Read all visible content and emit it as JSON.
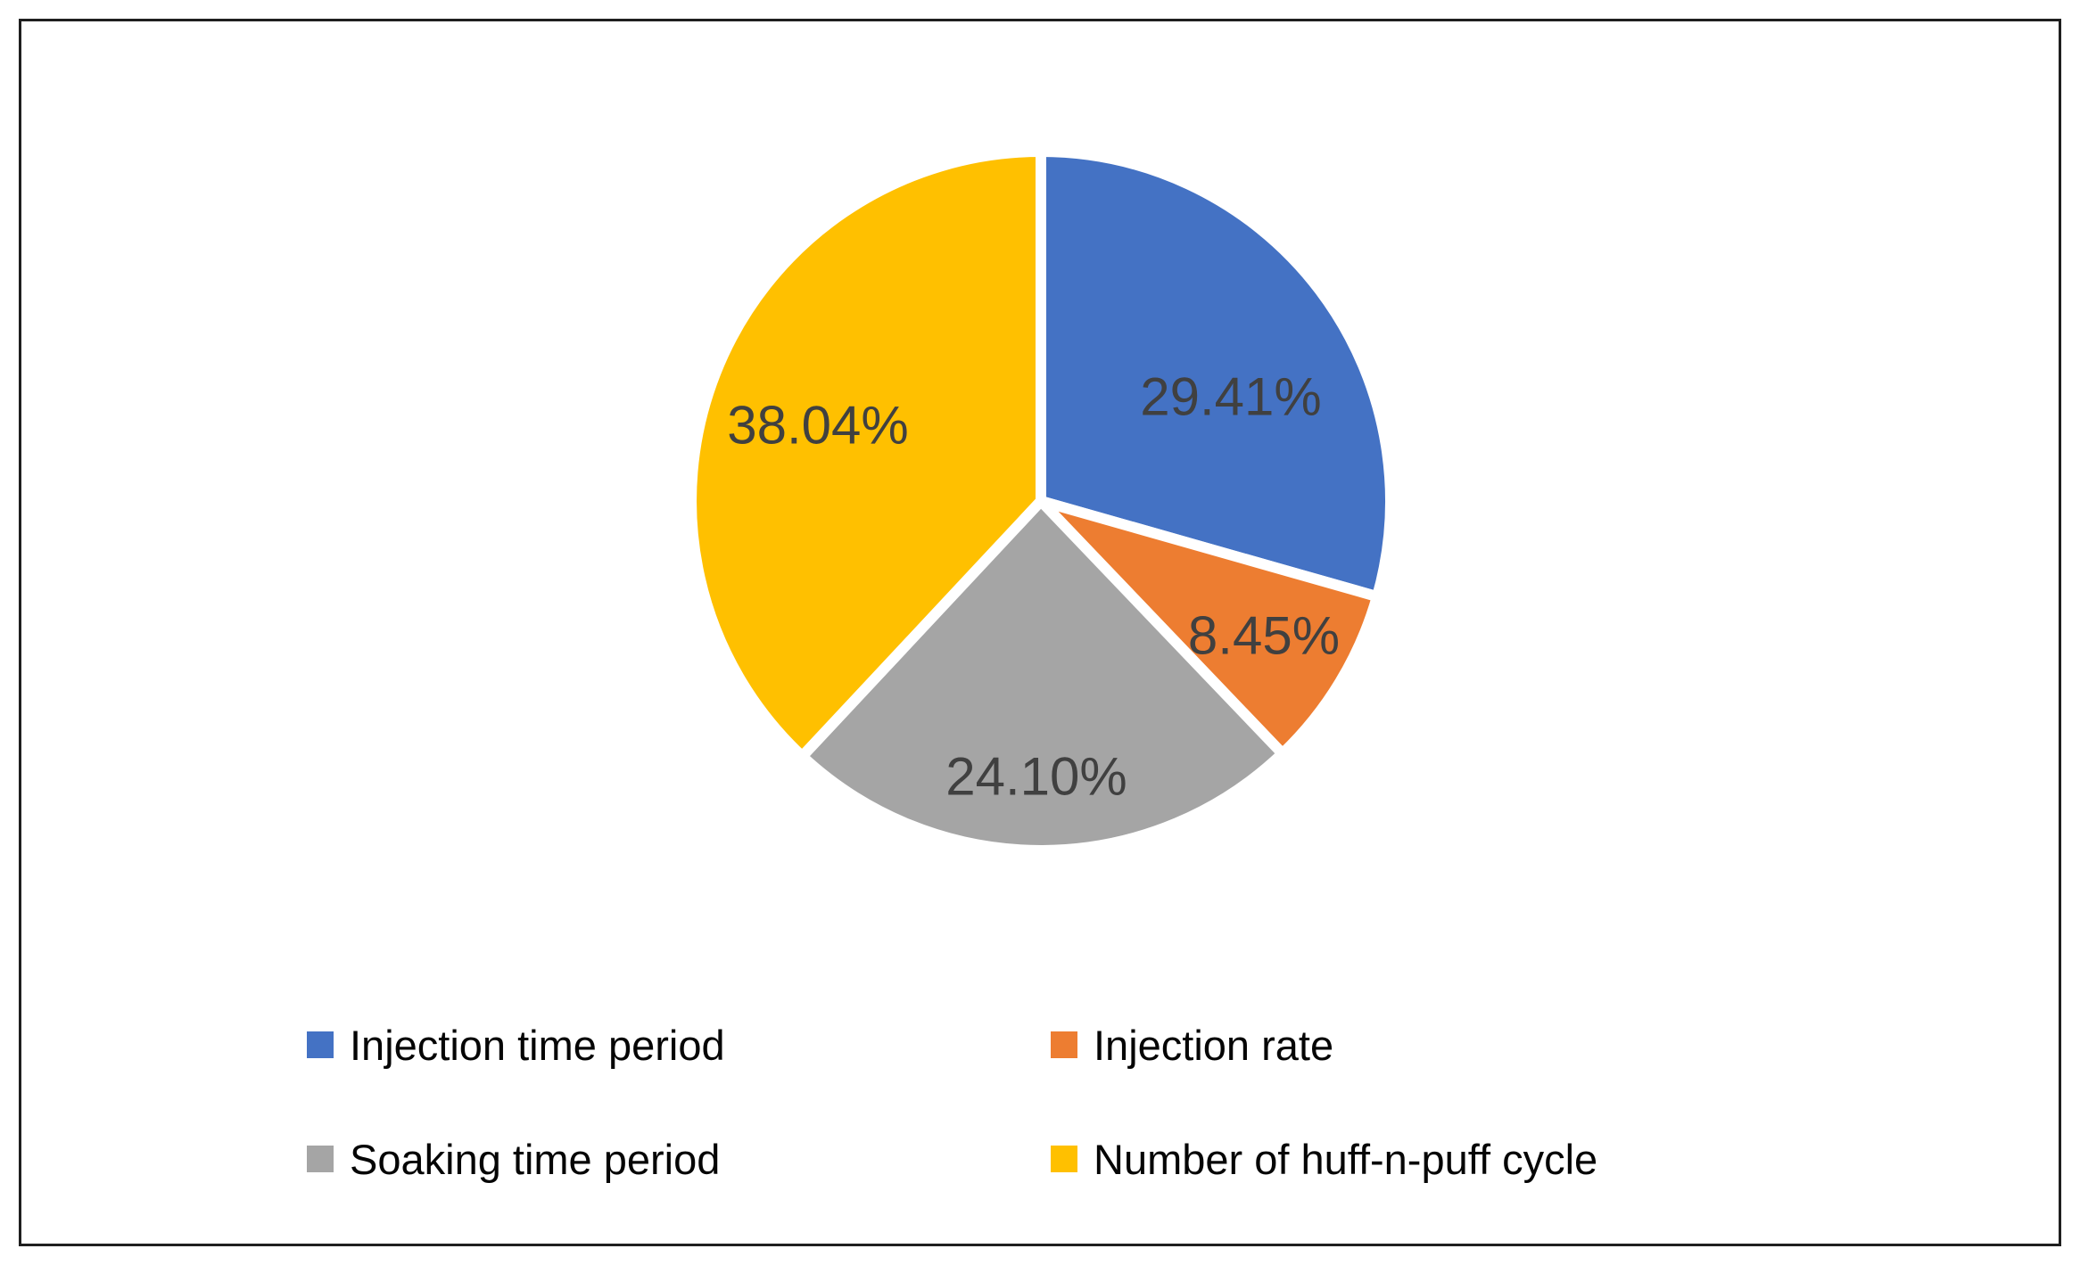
{
  "chart_data": {
    "type": "pie",
    "title": "",
    "categories": [
      "Injection time period",
      "Injection rate",
      "Soaking time period",
      "Number of huff-n-puff cycle"
    ],
    "values": [
      29.41,
      8.45,
      24.1,
      38.04
    ],
    "data_labels": [
      "29.41%",
      "8.45%",
      "24.10%",
      "38.04%"
    ],
    "colors": [
      "#4472C4",
      "#ED7D31",
      "#A5A5A5",
      "#FFC000"
    ],
    "start_angle_deg": 0,
    "direction": "clockwise",
    "slice_border_color": "#FFFFFF",
    "data_label_color": "#404040",
    "legend_position": "bottom",
    "legend": [
      {
        "label": "Injection time period",
        "color": "#4472C4"
      },
      {
        "label": "Injection rate",
        "color": "#ED7D31"
      },
      {
        "label": "Soaking time period",
        "color": "#A5A5A5"
      },
      {
        "label": "Number of huff-n-puff cycle",
        "color": "#FFC000"
      }
    ]
  }
}
